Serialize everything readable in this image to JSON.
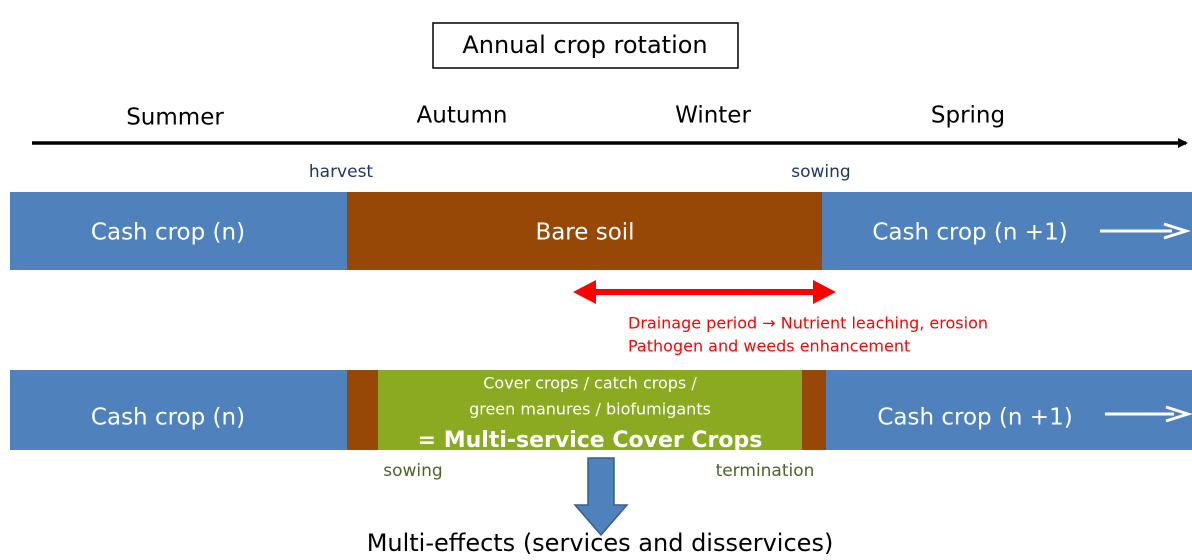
{
  "title": "Annual crop rotation",
  "seasons": [
    "Summer",
    "Autumn",
    "Winter",
    "Spring"
  ],
  "timeline_labels": {
    "harvest": "harvest",
    "sowing": "sowing"
  },
  "row1": {
    "left": "Cash crop (n)",
    "middle": "Bare soil",
    "right": "Cash crop (n +1)"
  },
  "drainage": {
    "line1": "Drainage period → Nutrient leaching, erosion",
    "line2": "Pathogen and weeds enhancement"
  },
  "row2": {
    "left": "Cash crop (n)",
    "cover_line1": "Cover crops / catch crops /",
    "cover_line2": "green manures / biofumigants",
    "cover_line3": "= Multi-service Cover Crops",
    "right": "Cash crop (n +1)",
    "sowing": "sowing",
    "termination": "termination"
  },
  "conclusion": "Multi-effects (services and disservices)"
}
